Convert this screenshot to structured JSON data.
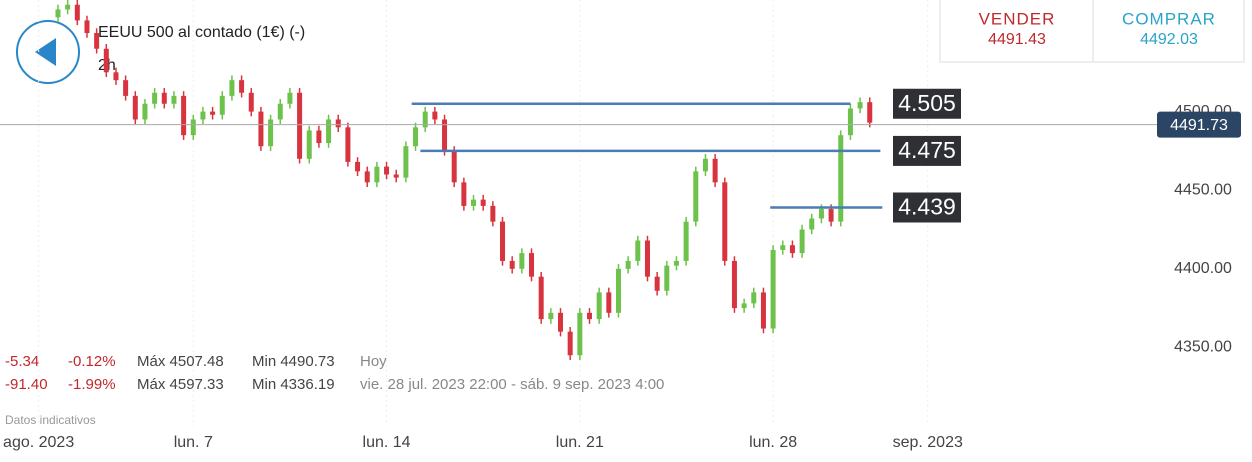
{
  "header": {
    "title": "EEUU 500 al contado (1€) (-)",
    "interval": "2h"
  },
  "quote": {
    "sell_label": "VENDER",
    "sell": "4491.43",
    "buy_label": "COMPRAR",
    "buy": "4492.03"
  },
  "stats": [
    {
      "change": "-5.34",
      "change_pct": "-0.12%",
      "max": "Máx 4507.48",
      "min": "Min 4490.73",
      "period": "Hoy"
    },
    {
      "change": "-91.40",
      "change_pct": "-1.99%",
      "max": "Máx 4597.33",
      "min": "Min 4336.19",
      "period": "vie. 28 jul. 2023 22:00 - sáb. 9 sep. 2023 4:00"
    }
  ],
  "disclaimer": "Datos indicativos",
  "chart_data": {
    "type": "candlestick",
    "x": [
      0,
      1,
      2,
      3,
      4,
      5,
      6,
      7,
      8,
      9,
      10,
      11,
      12,
      13,
      14,
      15,
      16,
      17,
      18,
      19,
      20,
      21,
      22,
      23,
      24,
      25,
      26,
      27,
      28,
      29,
      30,
      31,
      32,
      33,
      34,
      35,
      36,
      37,
      38,
      39,
      40,
      41,
      42,
      43,
      44,
      45,
      46,
      47,
      48,
      49,
      50,
      51,
      52,
      53,
      54,
      55,
      56,
      57,
      58,
      59,
      60,
      61,
      62,
      63,
      64,
      65,
      66,
      67,
      68,
      69,
      70,
      71,
      72,
      73,
      74,
      75,
      76,
      77,
      78,
      79,
      80,
      81,
      82,
      83,
      84
    ],
    "open": [
      4560,
      4565,
      4568,
      4558,
      4550,
      4540,
      4525,
      4520,
      4510,
      4495,
      4505,
      4512,
      4505,
      4510,
      4485,
      4495,
      4500,
      4498,
      4510,
      4520,
      4512,
      4500,
      4478,
      4495,
      4505,
      4512,
      4470,
      4488,
      4480,
      4495,
      4490,
      4468,
      4462,
      4455,
      4465,
      4460,
      4458,
      4478,
      4490,
      4500,
      4495,
      4475,
      4455,
      4440,
      4444,
      4440,
      4430,
      4405,
      4400,
      4410,
      4395,
      4368,
      4372,
      4360,
      4345,
      4372,
      4368,
      4385,
      4372,
      4400,
      4405,
      4418,
      4395,
      4386,
      4402,
      4405,
      4430,
      4462,
      4470,
      4455,
      4405,
      4375,
      4378,
      4385,
      4362,
      4412,
      4415,
      4410,
      4425,
      4432,
      4438,
      4430,
      4485,
      4502,
      4506
    ],
    "high": [
      4568,
      4571,
      4571,
      4561,
      4553,
      4543,
      4528,
      4523,
      4513,
      4508,
      4515,
      4515,
      4513,
      4513,
      4498,
      4503,
      4503,
      4513,
      4523,
      4523,
      4515,
      4503,
      4498,
      4508,
      4515,
      4515,
      4491,
      4491,
      4498,
      4498,
      4493,
      4471,
      4465,
      4468,
      4468,
      4463,
      4481,
      4493,
      4503,
      4503,
      4498,
      4478,
      4458,
      4447,
      4447,
      4443,
      4433,
      4408,
      4413,
      4413,
      4398,
      4375,
      4375,
      4363,
      4375,
      4375,
      4388,
      4388,
      4403,
      4408,
      4421,
      4421,
      4398,
      4405,
      4408,
      4433,
      4465,
      4473,
      4473,
      4458,
      4408,
      4381,
      4388,
      4388,
      4415,
      4418,
      4418,
      4428,
      4435,
      4441,
      4441,
      4488,
      4505,
      4509,
      4509
    ],
    "low": [
      4557,
      4562,
      4555,
      4547,
      4537,
      4522,
      4517,
      4507,
      4492,
      4492,
      4502,
      4502,
      4502,
      4482,
      4482,
      4492,
      4495,
      4495,
      4507,
      4509,
      4497,
      4475,
      4475,
      4492,
      4502,
      4467,
      4467,
      4477,
      4477,
      4487,
      4465,
      4459,
      4452,
      4452,
      4457,
      4455,
      4455,
      4475,
      4487,
      4492,
      4472,
      4452,
      4437,
      4437,
      4437,
      4427,
      4402,
      4397,
      4397,
      4392,
      4365,
      4365,
      4357,
      4342,
      4342,
      4365,
      4365,
      4369,
      4369,
      4397,
      4402,
      4392,
      4383,
      4383,
      4399,
      4402,
      4427,
      4459,
      4452,
      4402,
      4372,
      4372,
      4375,
      4359,
      4359,
      4409,
      4407,
      4407,
      4422,
      4429,
      4427,
      4427,
      4482,
      4499,
      4490
    ],
    "close": [
      4565,
      4568,
      4558,
      4550,
      4540,
      4525,
      4520,
      4510,
      4495,
      4505,
      4512,
      4505,
      4510,
      4485,
      4495,
      4500,
      4498,
      4510,
      4520,
      4512,
      4500,
      4478,
      4495,
      4505,
      4512,
      4470,
      4488,
      4480,
      4495,
      4490,
      4468,
      4462,
      4455,
      4465,
      4460,
      4458,
      4478,
      4490,
      4500,
      4495,
      4475,
      4455,
      4440,
      4444,
      4440,
      4430,
      4405,
      4400,
      4410,
      4395,
      4368,
      4372,
      4360,
      4345,
      4372,
      4368,
      4385,
      4372,
      4400,
      4405,
      4418,
      4395,
      4386,
      4402,
      4405,
      4430,
      4462,
      4470,
      4455,
      4405,
      4375,
      4378,
      4385,
      4362,
      4412,
      4415,
      4410,
      4425,
      4432,
      4438,
      4430,
      4485,
      4502,
      4506,
      4493
    ],
    "up_color": "#6cc24a",
    "down_color": "#d8343f",
    "xlim": [
      -6,
      113
    ],
    "ylim": [
      4300,
      4571
    ],
    "xticks": [
      {
        "value": -2,
        "label": "ago. 2023"
      },
      {
        "value": 14,
        "label": "lun. 7"
      },
      {
        "value": 34,
        "label": "lun. 14"
      },
      {
        "value": 54,
        "label": "lun. 21"
      },
      {
        "value": 74,
        "label": "lun. 28"
      },
      {
        "value": 90,
        "label": "sep. 2023"
      }
    ],
    "yticks": [
      {
        "value": 4350,
        "label": "4350.00"
      },
      {
        "value": 4400,
        "label": "4400.00"
      },
      {
        "value": 4450,
        "label": "4450.00"
      },
      {
        "value": 4500,
        "label": "4500.00"
      }
    ],
    "xgrid": true,
    "last_price": 4491.73,
    "trend_lines": [
      {
        "label": "4.505",
        "value": 4505,
        "x": [
          36.6,
          82
        ]
      },
      {
        "label": "4.475",
        "value": 4475,
        "x": [
          37.5,
          85.1
        ]
      },
      {
        "label": "4.439",
        "value": 4439,
        "x": [
          73.7,
          85.3
        ]
      }
    ],
    "trend_color": "#4a7db3"
  }
}
